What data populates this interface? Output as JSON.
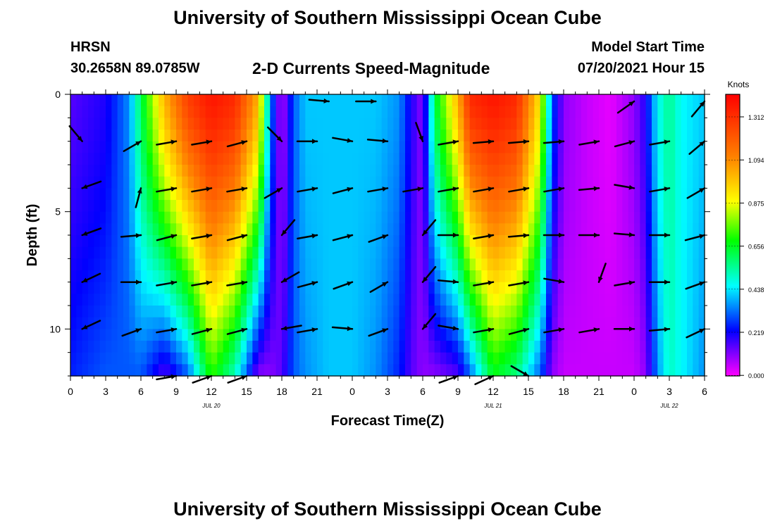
{
  "header": {
    "title": "University of Southern Mississippi Ocean Cube",
    "station": "HRSN",
    "coords": "30.2658N  89.0785W",
    "chart_title": "2-D Currents Speed-Magnitude",
    "model_label": "Model Start Time",
    "model_time": "07/20/2021 Hour 15"
  },
  "footer": {
    "title": "University of Southern Mississippi Ocean Cube"
  },
  "colorbar": {
    "unit": "Knots",
    "ticks": [
      "1.312",
      "1.094",
      "0.875",
      "0.656",
      "0.438",
      "0.219",
      "0.000"
    ],
    "colors": [
      "#ff0000",
      "#ff8000",
      "#ffff00",
      "#00ff00",
      "#00ffff",
      "#0000ff",
      "#ff00ff"
    ]
  },
  "chart_data": {
    "type": "heatmap",
    "title": "2-D Currents Speed-Magnitude",
    "xlabel": "Forecast Time(Z)",
    "ylabel": "Depth (ft)",
    "x_unit": "hours since 07/20 00Z",
    "x_range": [
      0,
      54
    ],
    "y_range": [
      0,
      12
    ],
    "y_ticks": [
      "0",
      "5",
      "10"
    ],
    "x_tick_labels": [
      "0",
      "3",
      "6",
      "9",
      "12",
      "15",
      "18",
      "21",
      "0",
      "3",
      "6",
      "9",
      "12",
      "15",
      "18",
      "21",
      "0",
      "3",
      "6"
    ],
    "date_labels": [
      {
        "label": "JUL 20",
        "x": 12
      },
      {
        "label": "JUL 21",
        "x": 36
      },
      {
        "label": "JUL 22",
        "x": 51
      }
    ],
    "value_range": [
      0,
      1.4
    ],
    "speed_profile": {
      "x": [
        0,
        3,
        5,
        6,
        8,
        10,
        12,
        14,
        16,
        17,
        18,
        19,
        20,
        22,
        24,
        26,
        28,
        29,
        30,
        31,
        33,
        34,
        36,
        38,
        40,
        41,
        42,
        44,
        46,
        48,
        49,
        50,
        51,
        52,
        54
      ],
      "surface": [
        0.15,
        0.2,
        0.35,
        0.6,
        1.0,
        1.25,
        1.35,
        1.3,
        1.0,
        0.35,
        0.05,
        0.3,
        0.4,
        0.4,
        0.4,
        0.4,
        0.35,
        0.2,
        0.1,
        0.6,
        1.0,
        1.3,
        1.35,
        1.3,
        0.9,
        0.3,
        0.1,
        0.05,
        0.02,
        0.1,
        0.2,
        0.45,
        0.55,
        0.45,
        0.4
      ],
      "bottom": [
        0.25,
        0.3,
        0.3,
        0.3,
        0.15,
        0.3,
        0.7,
        0.5,
        0.1,
        0.1,
        0.15,
        0.3,
        0.35,
        0.4,
        0.4,
        0.35,
        0.25,
        0.15,
        0.1,
        0.1,
        0.15,
        0.3,
        0.65,
        0.55,
        0.3,
        0.1,
        0.05,
        0.05,
        0.05,
        0.05,
        0.1,
        0.35,
        0.5,
        0.45,
        0.35
      ]
    },
    "vectors": [
      {
        "depth": 2,
        "times": [
          1,
          6,
          9,
          12,
          15,
          18,
          21,
          24,
          27,
          30,
          33,
          36,
          39,
          42,
          45,
          48,
          51,
          54
        ],
        "dirs": [
          140,
          60,
          80,
          80,
          75,
          135,
          90,
          100,
          95,
          160,
          80,
          85,
          85,
          85,
          80,
          75,
          80,
          50
        ]
      },
      {
        "depth": 4,
        "times": [
          1,
          6,
          9,
          12,
          15,
          18,
          21,
          24,
          27,
          30,
          33,
          36,
          39,
          42,
          45,
          48,
          51,
          54
        ],
        "dirs": [
          250,
          15,
          80,
          80,
          80,
          60,
          80,
          75,
          80,
          80,
          80,
          80,
          80,
          80,
          85,
          100,
          80,
          60
        ]
      },
      {
        "depth": 6,
        "times": [
          1,
          6,
          9,
          12,
          15,
          18,
          21,
          24,
          27,
          30,
          33,
          36,
          39,
          42,
          45,
          48,
          51,
          54
        ],
        "dirs": [
          250,
          85,
          75,
          80,
          75,
          220,
          80,
          75,
          70,
          220,
          90,
          80,
          85,
          90,
          90,
          95,
          90,
          75
        ]
      },
      {
        "depth": 8,
        "times": [
          1,
          6,
          9,
          12,
          15,
          18,
          21,
          24,
          27,
          30,
          33,
          36,
          39,
          42,
          45,
          48,
          51,
          54
        ],
        "dirs": [
          245,
          90,
          80,
          80,
          80,
          240,
          75,
          70,
          60,
          220,
          95,
          80,
          80,
          100,
          200,
          80,
          90,
          70
        ]
      },
      {
        "depth": 10,
        "times": [
          1,
          6,
          9,
          12,
          15,
          18,
          21,
          24,
          27,
          30,
          33,
          36,
          39,
          42,
          45,
          48,
          51,
          54
        ],
        "dirs": [
          245,
          70,
          80,
          75,
          75,
          260,
          80,
          95,
          70,
          220,
          100,
          80,
          75,
          80,
          80,
          90,
          85,
          65
        ]
      },
      {
        "depth": 12,
        "times": [
          9,
          12,
          15,
          33,
          36,
          39
        ],
        "dirs": [
          80,
          70,
          70,
          70,
          65,
          120
        ]
      },
      {
        "depth": 0.3,
        "times": [
          22,
          26,
          48,
          54
        ],
        "dirs": [
          95,
          90,
          55,
          40
        ]
      }
    ]
  }
}
